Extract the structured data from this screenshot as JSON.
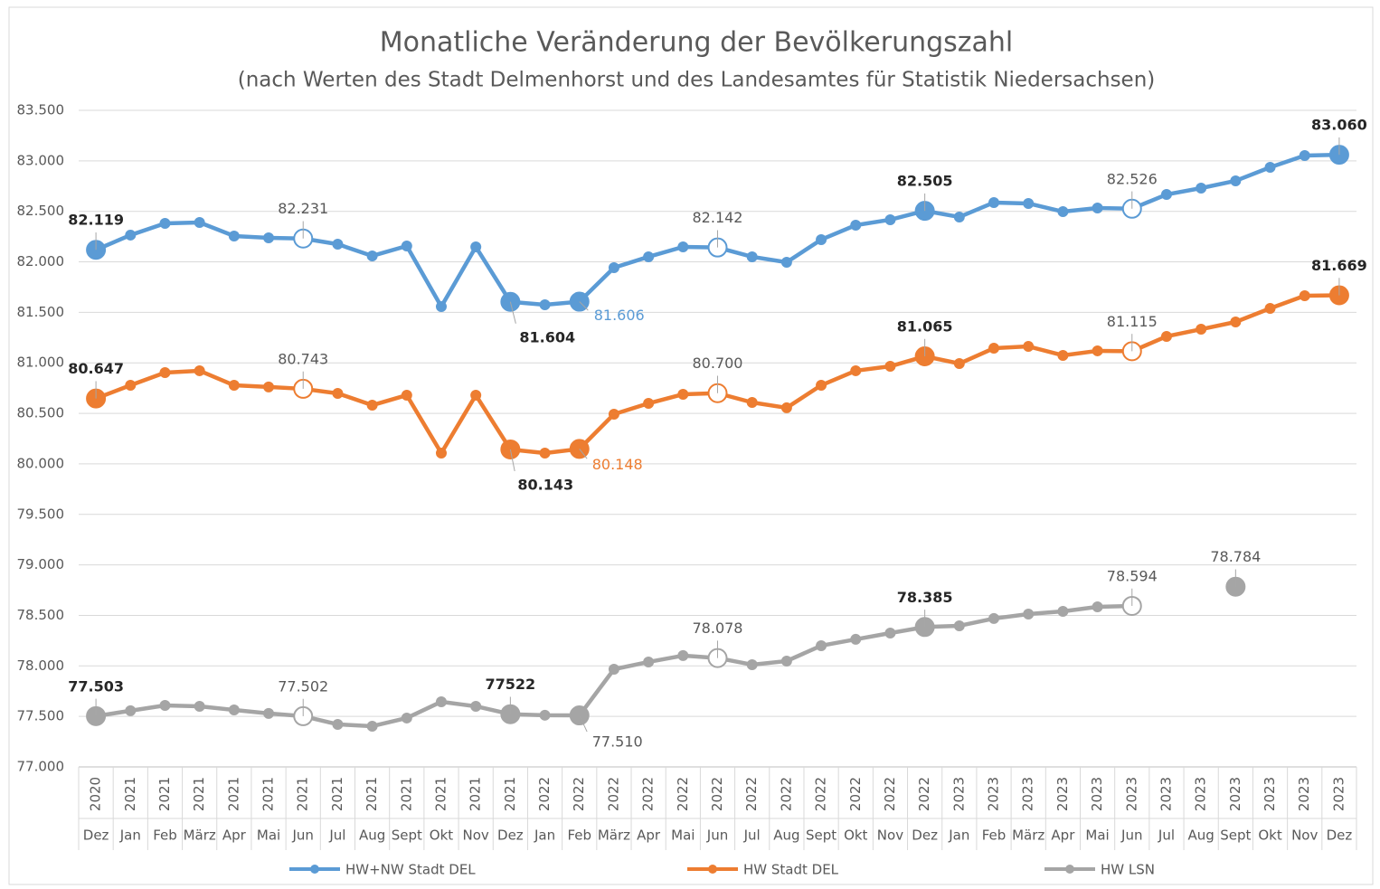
{
  "chart_data": {
    "type": "line",
    "title": "Monatliche Veränderung der Bevölkerungszahl",
    "subtitle": "(nach Werten des Stadt Delmenhorst und des Landesamtes für Statistik Niedersachsen)",
    "categories": [
      "Dez",
      "Jan",
      "Feb",
      "März",
      "Apr",
      "Mai",
      "Jun",
      "Jul",
      "Aug",
      "Sept",
      "Okt",
      "Nov",
      "Dez",
      "Jan",
      "Feb",
      "März",
      "Apr",
      "Mai",
      "Jun",
      "Jul",
      "Aug",
      "Sept",
      "Okt",
      "Nov",
      "Dez",
      "Jan",
      "Feb",
      "März",
      "Apr",
      "Mai",
      "Jun",
      "Jul",
      "Aug",
      "Sept",
      "Okt",
      "Nov",
      "Dez"
    ],
    "years": [
      "2020",
      "2021",
      "2021",
      "2021",
      "2021",
      "2021",
      "2021",
      "2021",
      "2021",
      "2021",
      "2021",
      "2021",
      "2021",
      "2022",
      "2022",
      "2022",
      "2022",
      "2022",
      "2022",
      "2022",
      "2022",
      "2022",
      "2022",
      "2022",
      "2022",
      "2023",
      "2023",
      "2023",
      "2023",
      "2023",
      "2023",
      "2023",
      "2023",
      "2023",
      "2023",
      "2023",
      "2023"
    ],
    "ylim": [
      77000,
      83500
    ],
    "yticks": [
      {
        "value": 77000,
        "label": "77.000"
      },
      {
        "value": 77500,
        "label": "77.500"
      },
      {
        "value": 78000,
        "label": "78.000"
      },
      {
        "value": 78500,
        "label": "78.500"
      },
      {
        "value": 79000,
        "label": "79.000"
      },
      {
        "value": 79500,
        "label": "79.500"
      },
      {
        "value": 80000,
        "label": "80.000"
      },
      {
        "value": 80500,
        "label": "80.500"
      },
      {
        "value": 81000,
        "label": "81.000"
      },
      {
        "value": 81500,
        "label": "81.500"
      },
      {
        "value": 82000,
        "label": "82.000"
      },
      {
        "value": 82500,
        "label": "82.500"
      },
      {
        "value": 83000,
        "label": "83.000"
      },
      {
        "value": 83500,
        "label": "83.500"
      }
    ],
    "grid": true,
    "legend": "bottom",
    "series": [
      {
        "name": "HW+NW Stadt DEL",
        "color": "#5b9bd5",
        "values": [
          82119,
          82265,
          82381,
          82390,
          82256,
          82238,
          82231,
          82175,
          82059,
          82157,
          81557,
          82148,
          81604,
          81575,
          81606,
          81942,
          82050,
          82148,
          82142,
          82050,
          81996,
          82220,
          82363,
          82417,
          82505,
          82444,
          82587,
          82578,
          82497,
          82533,
          82526,
          82667,
          82730,
          82802,
          82936,
          83052,
          83060
        ],
        "value_labels": [
          "82.119",
          null,
          null,
          null,
          null,
          null,
          "82.231",
          null,
          null,
          null,
          null,
          null,
          "81.604",
          null,
          "81.606",
          null,
          null,
          null,
          "82.142",
          null,
          null,
          null,
          null,
          null,
          "82.505",
          null,
          null,
          null,
          null,
          null,
          "82.526",
          null,
          null,
          null,
          null,
          null,
          "83.060"
        ]
      },
      {
        "name": "HW Stadt DEL",
        "color": "#ed7d31",
        "values": [
          80647,
          80778,
          80904,
          80922,
          80778,
          80761,
          80743,
          80698,
          80581,
          80680,
          80107,
          80680,
          80143,
          80107,
          80148,
          80492,
          80599,
          80689,
          80700,
          80608,
          80555,
          80778,
          80922,
          80966,
          81065,
          80993,
          81145,
          81163,
          81074,
          81119,
          81115,
          81262,
          81333,
          81405,
          81539,
          81665,
          81669
        ],
        "value_labels": [
          "80.647",
          null,
          null,
          null,
          null,
          null,
          "80.743",
          null,
          null,
          null,
          null,
          null,
          "80.143",
          null,
          "80.148",
          null,
          null,
          null,
          "80.700",
          null,
          null,
          null,
          null,
          null,
          "81.065",
          null,
          null,
          null,
          null,
          null,
          "81.115",
          null,
          null,
          null,
          null,
          null,
          "81.669"
        ]
      },
      {
        "name": "HW LSN",
        "color": "#a5a5a5",
        "values": [
          77503,
          77556,
          77609,
          77600,
          77564,
          77529,
          77502,
          77421,
          77403,
          77484,
          77645,
          77600,
          77522,
          77512,
          77510,
          77967,
          78039,
          78102,
          78078,
          78012,
          78048,
          78200,
          78263,
          78325,
          78385,
          78397,
          78469,
          78513,
          78540,
          78585,
          78594,
          null,
          null,
          78784,
          null,
          null,
          null
        ],
        "value_labels": [
          "77.503",
          null,
          null,
          null,
          null,
          null,
          "77.502",
          null,
          null,
          null,
          null,
          null,
          "77522",
          null,
          "77.510",
          null,
          null,
          null,
          "78.078",
          null,
          null,
          null,
          null,
          null,
          "78.385",
          null,
          null,
          null,
          null,
          null,
          "78.594",
          null,
          null,
          "78.784",
          null,
          null,
          null
        ]
      }
    ]
  }
}
